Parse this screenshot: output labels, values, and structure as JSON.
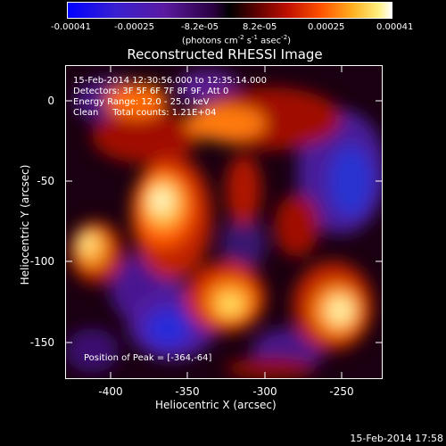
{
  "colorbar": {
    "ticks": [
      "-0.00041",
      "-0.00025",
      "-8.2e-05",
      "8.2e-05",
      "0.00025",
      "0.00041"
    ],
    "units_main": "(photons cm",
    "units_sup1": "-2",
    "units_mid1": " s",
    "units_sup2": "-1",
    "units_mid2": " asec",
    "units_sup3": "-2",
    "units_end": ")"
  },
  "plot": {
    "title": "Reconstructed RHESSI Image",
    "xlabel": "Heliocentric X (arcsec)",
    "ylabel": "Heliocentric Y (arcsec)",
    "xticks": [
      "-400",
      "-350",
      "-300",
      "-250"
    ],
    "yticks": [
      "0",
      "-50",
      "-100",
      "-150"
    ],
    "annotations": {
      "time_range": "15-Feb-2014 12:30:56.000 to 12:35:14.000",
      "detectors": "Detectors: 3F 5F 6F 7F 8F 9F, Att 0",
      "energy": "Energy Range: 12.0 - 25.0 keV",
      "clean": "Clean     Total counts: 1.21E+04",
      "peak": "Position of Peak = [-364,-64]"
    }
  },
  "footer": {
    "timestamp": "15-Feb-2014 17:58"
  }
}
